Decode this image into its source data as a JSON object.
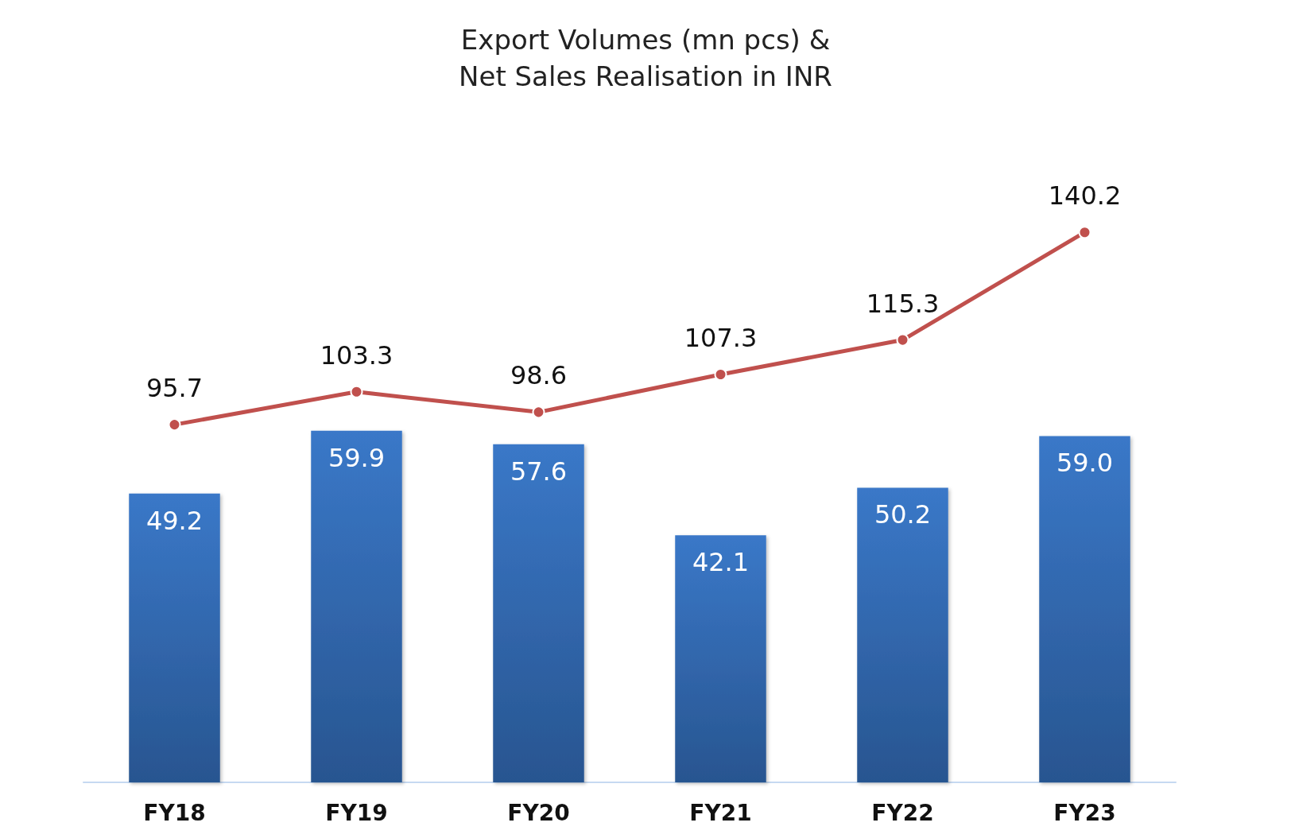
{
  "chart_data": [
    {
      "type": "bar",
      "categories": [
        "FY18",
        "FY19",
        "FY20",
        "FY21",
        "FY22",
        "FY23"
      ],
      "color": "#3a78c8",
      "values": [
        49.2,
        59.9,
        57.6,
        42.1,
        50.2,
        59.0
      ],
      "value_labels": [
        "49.2",
        "59.9",
        "57.6",
        "42.1",
        "50.2",
        "59.0"
      ],
      "tick_labels": "x"
    },
    {
      "type": "line",
      "title": "Export Volumes (mn pcs) &\nNet Sales Realisation in INR",
      "categories": [
        "FY18",
        "FY19",
        "FY20",
        "FY21",
        "FY22",
        "FY23"
      ],
      "color": "#c0504d",
      "values": [
        95.7,
        103.3,
        98.6,
        107.3,
        115.3,
        140.2
      ],
      "value_labels": [
        "95.7",
        "103.3",
        "98.6",
        "107.3",
        "115.3",
        "140.2"
      ],
      "tick_labels": false,
      "marker": "circle"
    }
  ]
}
